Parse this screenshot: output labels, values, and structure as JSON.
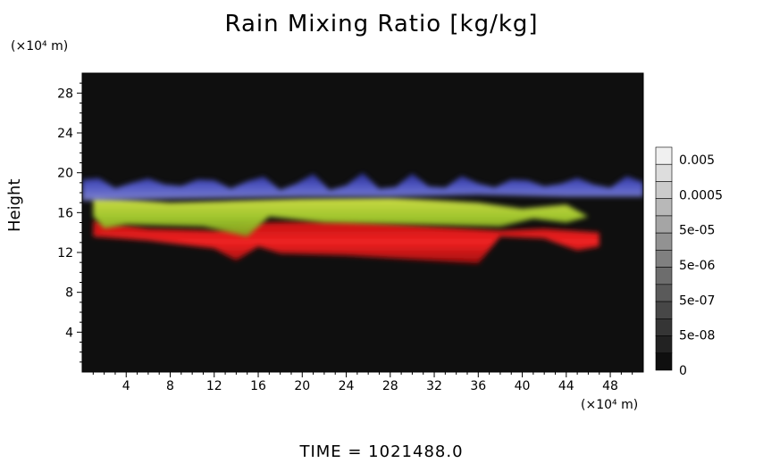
{
  "chart_data": {
    "type": "heatmap",
    "title": "Rain Mixing Ratio [kg/kg]",
    "xlabel": "",
    "ylabel": "Height",
    "x_unit_label": "(×10⁴ m)",
    "y_unit_label": "(×10⁴ m)",
    "footer": "TIME  =  1021488.0",
    "xlim": [
      0,
      51
    ],
    "ylim": [
      0,
      30
    ],
    "x_ticks": [
      4,
      8,
      12,
      16,
      20,
      24,
      28,
      32,
      36,
      40,
      44,
      48
    ],
    "y_ticks": [
      4,
      8,
      12,
      16,
      20,
      24,
      28
    ],
    "colorbar": {
      "labels": [
        "0.005",
        "0.0005",
        "5e-05",
        "5e-06",
        "5e-07",
        "5e-08",
        "0"
      ],
      "levels": 13
    },
    "bands": [
      {
        "name": "",
        "color": "#3b43c8",
        "y_range": [
          17.5,
          19.8
        ],
        "x_range": [
          0,
          51
        ]
      },
      {
        "name": "",
        "color": "#b8d832",
        "y_range": [
          14.5,
          17.5
        ],
        "x_range": [
          1,
          46
        ]
      },
      {
        "name": "",
        "color": "#e01818",
        "y_range": [
          11.0,
          15.0
        ],
        "x_range": [
          1,
          47
        ]
      }
    ],
    "background": "#0f0f0f"
  }
}
